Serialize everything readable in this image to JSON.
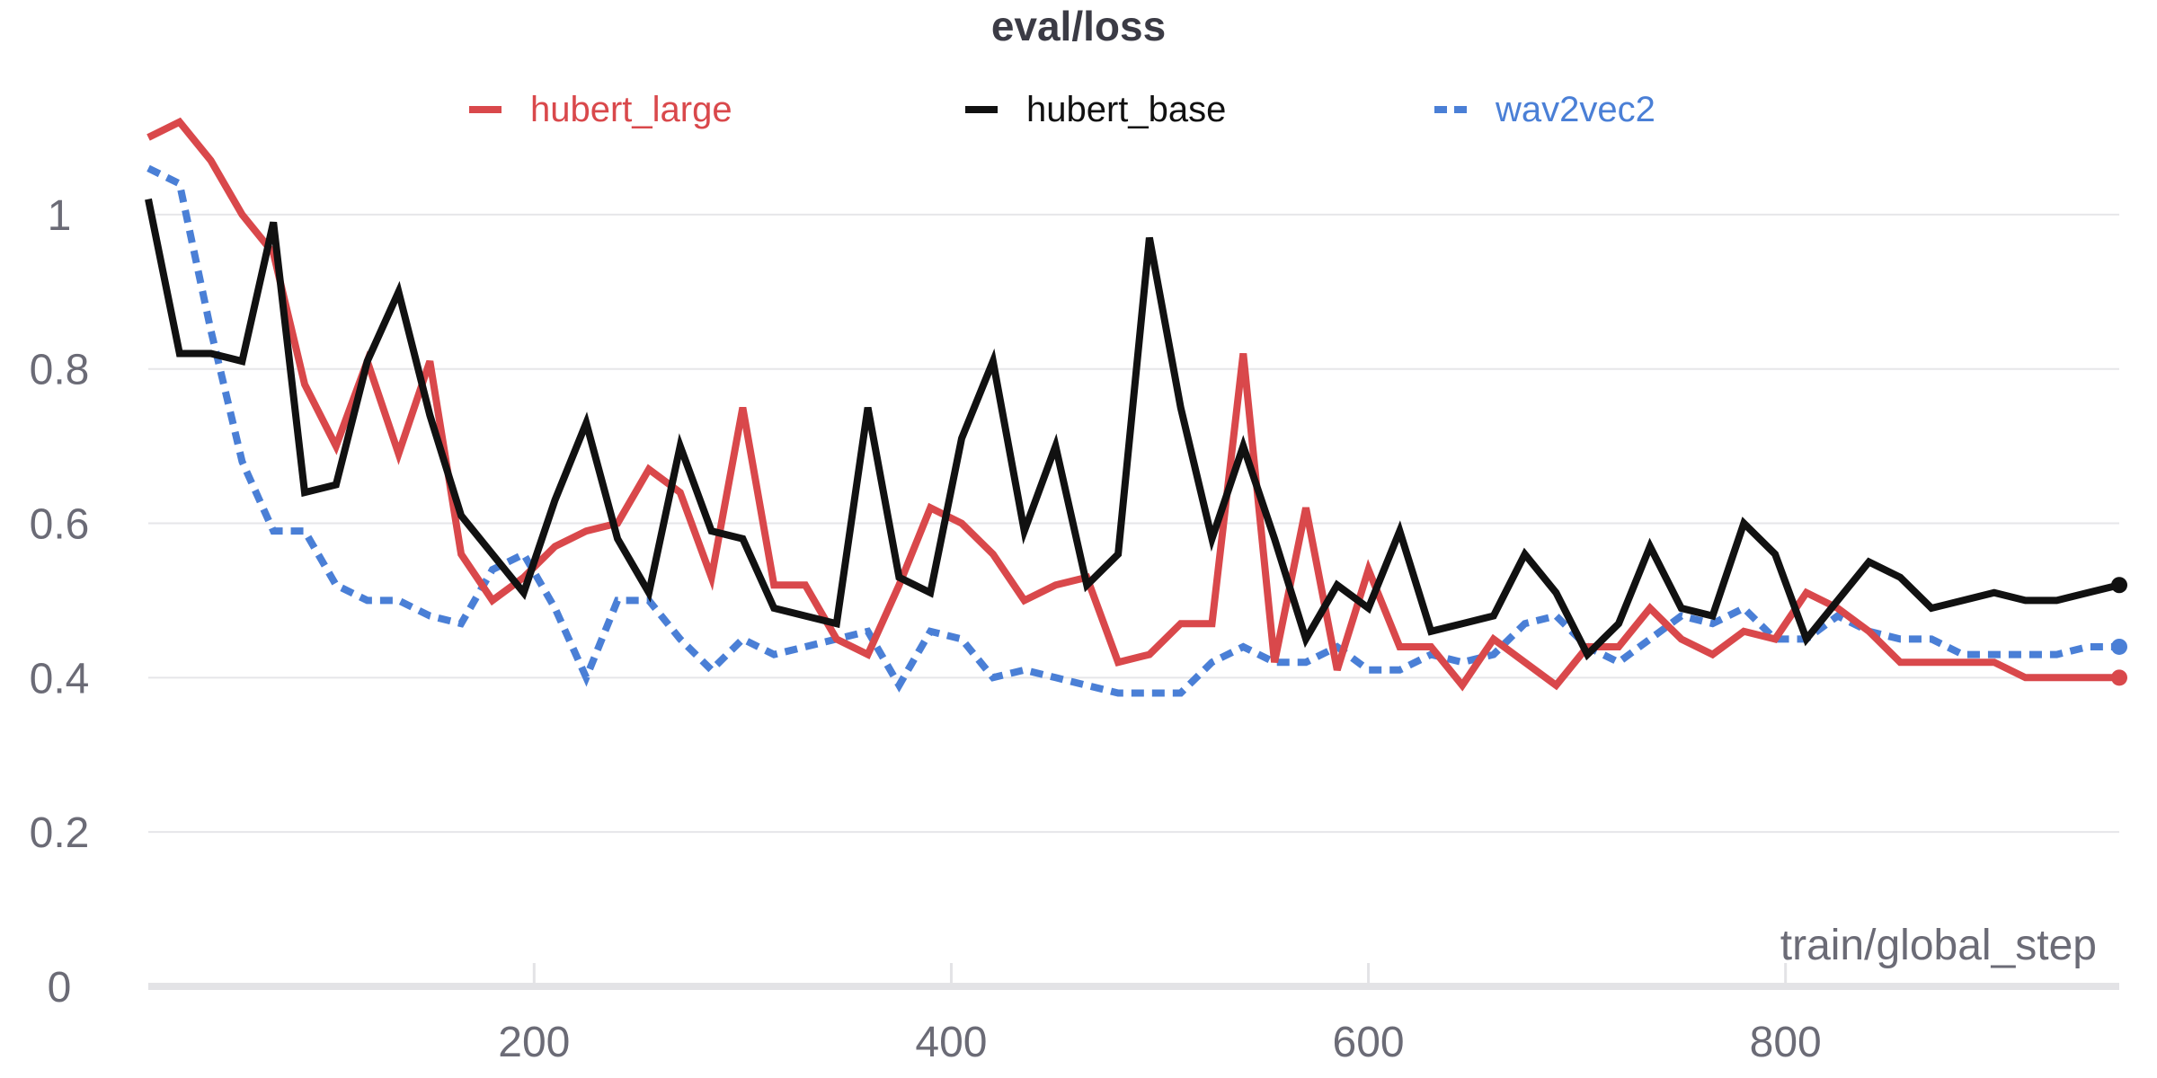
{
  "chart_data": {
    "type": "line",
    "title": "eval/loss",
    "xlabel": "train/global_step",
    "ylabel": "",
    "xlim": [
      15,
      960
    ],
    "ylim": [
      0,
      1.15
    ],
    "x_ticks": [
      200,
      400,
      600,
      800
    ],
    "y_ticks": [
      0,
      0.2,
      0.4,
      0.6,
      0.8,
      1
    ],
    "y_tick_labels": [
      "0",
      "0.2",
      "0.4",
      "0.6",
      "0.8",
      "1"
    ],
    "grid": true,
    "legend_position": "top",
    "series": [
      {
        "name": "hubert_large",
        "color": "#d9484b",
        "dash": "solid",
        "end_marker": true,
        "x": [
          15,
          30,
          45,
          60,
          75,
          90,
          105,
          120,
          135,
          150,
          165,
          180,
          195,
          210,
          225,
          240,
          255,
          270,
          285,
          300,
          315,
          330,
          345,
          360,
          375,
          390,
          405,
          420,
          435,
          450,
          465,
          480,
          495,
          510,
          525,
          540,
          555,
          570,
          585,
          600,
          615,
          630,
          645,
          660,
          675,
          690,
          705,
          720,
          735,
          750,
          765,
          780,
          795,
          810,
          825,
          840,
          855,
          870,
          885,
          900,
          915,
          930,
          945,
          960
        ],
        "values": [
          1.1,
          1.12,
          1.07,
          1.0,
          0.95,
          0.78,
          0.7,
          0.81,
          0.69,
          0.81,
          0.56,
          0.5,
          0.53,
          0.57,
          0.59,
          0.6,
          0.67,
          0.64,
          0.53,
          0.75,
          0.52,
          0.52,
          0.45,
          0.43,
          0.52,
          0.62,
          0.6,
          0.56,
          0.5,
          0.52,
          0.53,
          0.42,
          0.43,
          0.47,
          0.47,
          0.82,
          0.42,
          0.62,
          0.41,
          0.54,
          0.44,
          0.44,
          0.39,
          0.45,
          0.42,
          0.39,
          0.44,
          0.44,
          0.49,
          0.45,
          0.43,
          0.46,
          0.45,
          0.51,
          0.49,
          0.46,
          0.42,
          0.42,
          0.42,
          0.42,
          0.4,
          0.4,
          0.4,
          0.4
        ]
      },
      {
        "name": "hubert_base",
        "color": "#111111",
        "dash": "solid",
        "end_marker": true,
        "x": [
          15,
          30,
          45,
          60,
          75,
          90,
          105,
          120,
          135,
          150,
          165,
          180,
          195,
          210,
          225,
          240,
          255,
          270,
          285,
          300,
          315,
          330,
          345,
          360,
          375,
          390,
          405,
          420,
          435,
          450,
          465,
          480,
          495,
          510,
          525,
          540,
          555,
          570,
          585,
          600,
          615,
          630,
          645,
          660,
          675,
          690,
          705,
          720,
          735,
          750,
          765,
          780,
          795,
          810,
          825,
          840,
          855,
          870,
          885,
          900,
          915,
          930,
          945,
          960
        ],
        "values": [
          1.02,
          0.82,
          0.82,
          0.81,
          0.99,
          0.64,
          0.65,
          0.81,
          0.9,
          0.74,
          0.61,
          0.56,
          0.51,
          0.63,
          0.73,
          0.58,
          0.51,
          0.7,
          0.59,
          0.58,
          0.49,
          0.48,
          0.47,
          0.75,
          0.53,
          0.51,
          0.71,
          0.81,
          0.59,
          0.7,
          0.52,
          0.56,
          0.97,
          0.75,
          0.58,
          0.7,
          0.58,
          0.45,
          0.52,
          0.49,
          0.59,
          0.46,
          0.47,
          0.48,
          0.56,
          0.51,
          0.43,
          0.47,
          0.57,
          0.49,
          0.48,
          0.6,
          0.56,
          0.45,
          0.5,
          0.55,
          0.53,
          0.49,
          0.5,
          0.51,
          0.5,
          0.5,
          0.51,
          0.52
        ]
      },
      {
        "name": "wav2vec2",
        "color": "#4a7fd6",
        "dash": "dashed",
        "end_marker": true,
        "x": [
          15,
          30,
          45,
          60,
          75,
          90,
          105,
          120,
          135,
          150,
          165,
          180,
          195,
          210,
          225,
          240,
          255,
          270,
          285,
          300,
          315,
          330,
          345,
          360,
          375,
          390,
          405,
          420,
          435,
          450,
          465,
          480,
          495,
          510,
          525,
          540,
          555,
          570,
          585,
          600,
          615,
          630,
          645,
          660,
          675,
          690,
          705,
          720,
          735,
          750,
          765,
          780,
          795,
          810,
          825,
          840,
          855,
          870,
          885,
          900,
          915,
          930,
          945,
          960
        ],
        "values": [
          1.06,
          1.04,
          0.85,
          0.68,
          0.59,
          0.59,
          0.52,
          0.5,
          0.5,
          0.48,
          0.47,
          0.54,
          0.56,
          0.49,
          0.4,
          0.5,
          0.5,
          0.45,
          0.41,
          0.45,
          0.43,
          0.44,
          0.45,
          0.46,
          0.39,
          0.46,
          0.45,
          0.4,
          0.41,
          0.4,
          0.39,
          0.38,
          0.38,
          0.38,
          0.42,
          0.44,
          0.42,
          0.42,
          0.44,
          0.41,
          0.41,
          0.43,
          0.42,
          0.43,
          0.47,
          0.48,
          0.44,
          0.42,
          0.45,
          0.48,
          0.47,
          0.49,
          0.45,
          0.45,
          0.48,
          0.46,
          0.45,
          0.45,
          0.43,
          0.43,
          0.43,
          0.43,
          0.44,
          0.44
        ]
      }
    ]
  }
}
